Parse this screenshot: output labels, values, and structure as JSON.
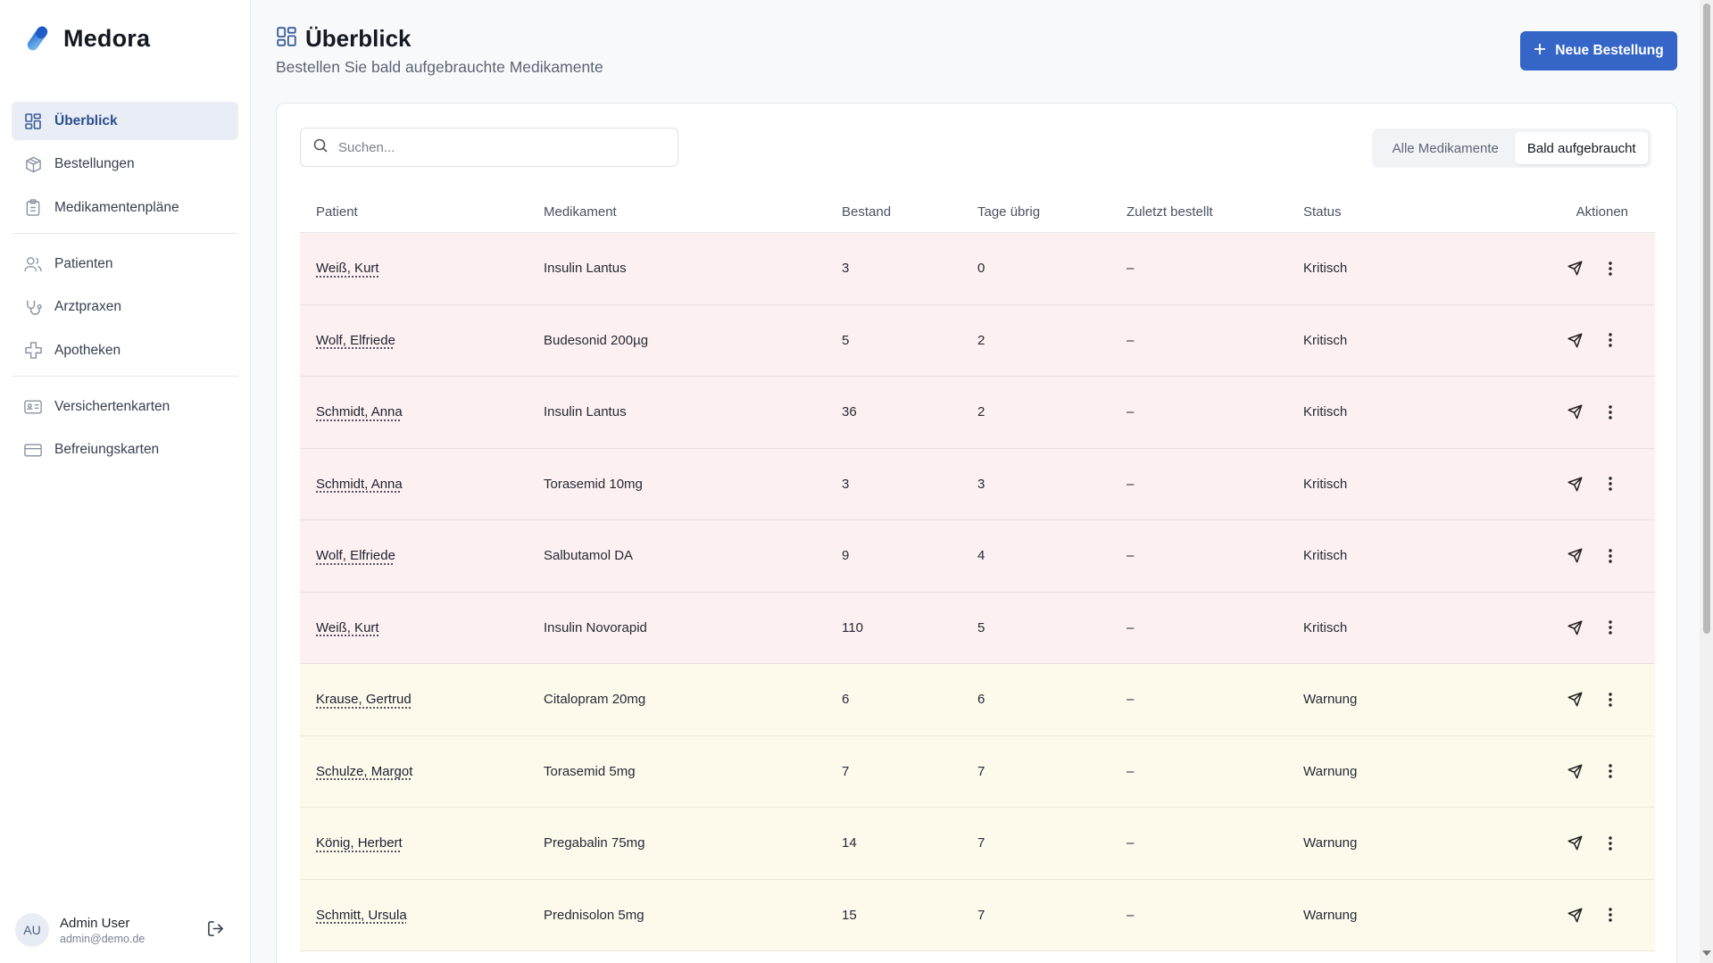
{
  "app": {
    "name": "Medora"
  },
  "sidebar": {
    "items": [
      {
        "label": "Überblick",
        "icon": "dashboard-icon",
        "active": true
      },
      {
        "label": "Bestellungen",
        "icon": "package-icon"
      },
      {
        "label": "Medikamentenpläne",
        "icon": "clipboard-icon"
      },
      {
        "label": "Patienten",
        "icon": "users-icon"
      },
      {
        "label": "Arztpraxen",
        "icon": "stethoscope-icon"
      },
      {
        "label": "Apotheken",
        "icon": "cross-icon"
      },
      {
        "label": "Versichertenkarten",
        "icon": "id-card-icon"
      },
      {
        "label": "Befreiungskarten",
        "icon": "credit-card-icon"
      }
    ]
  },
  "user": {
    "initials": "AU",
    "name": "Admin User",
    "email": "admin@demo.de"
  },
  "header": {
    "title": "Überblick",
    "subtitle": "Bestellen Sie bald aufgebrauchte Medikamente",
    "new_order_label": "Neue Bestellung"
  },
  "search": {
    "placeholder": "Suchen..."
  },
  "filter": {
    "all_label": "Alle Medikamente",
    "soon_label": "Bald aufgebraucht",
    "active": "soon"
  },
  "table": {
    "columns": [
      "Patient",
      "Medikament",
      "Bestand",
      "Tage übrig",
      "Zuletzt bestellt",
      "Status",
      "Aktionen"
    ],
    "rows": [
      {
        "patient": "Weiß, Kurt",
        "medication": "Insulin Lantus",
        "stock": "3",
        "days_left": "0",
        "last_ordered": "–",
        "status": "Kritisch"
      },
      {
        "patient": "Wolf, Elfriede",
        "medication": "Budesonid 200µg",
        "stock": "5",
        "days_left": "2",
        "last_ordered": "–",
        "status": "Kritisch"
      },
      {
        "patient": "Schmidt, Anna",
        "medication": "Insulin Lantus",
        "stock": "36",
        "days_left": "2",
        "last_ordered": "–",
        "status": "Kritisch"
      },
      {
        "patient": "Schmidt, Anna",
        "medication": "Torasemid 10mg",
        "stock": "3",
        "days_left": "3",
        "last_ordered": "–",
        "status": "Kritisch"
      },
      {
        "patient": "Wolf, Elfriede",
        "medication": "Salbutamol DA",
        "stock": "9",
        "days_left": "4",
        "last_ordered": "–",
        "status": "Kritisch"
      },
      {
        "patient": "Weiß, Kurt",
        "medication": "Insulin Novorapid",
        "stock": "110",
        "days_left": "5",
        "last_ordered": "–",
        "status": "Kritisch"
      },
      {
        "patient": "Krause, Gertrud",
        "medication": "Citalopram 20mg",
        "stock": "6",
        "days_left": "6",
        "last_ordered": "–",
        "status": "Warnung"
      },
      {
        "patient": "Schulze, Margot",
        "medication": "Torasemid 5mg",
        "stock": "7",
        "days_left": "7",
        "last_ordered": "–",
        "status": "Warnung"
      },
      {
        "patient": "König, Herbert",
        "medication": "Pregabalin 75mg",
        "stock": "14",
        "days_left": "7",
        "last_ordered": "–",
        "status": "Warnung"
      },
      {
        "patient": "Schmitt, Ursula",
        "medication": "Prednisolon 5mg",
        "stock": "15",
        "days_left": "7",
        "last_ordered": "–",
        "status": "Warnung"
      }
    ]
  },
  "colors": {
    "accent": "#3566c7",
    "critical_row": "#fdf0f0",
    "warning_row": "#fdfaec",
    "active_nav_bg": "#e9eef6"
  }
}
